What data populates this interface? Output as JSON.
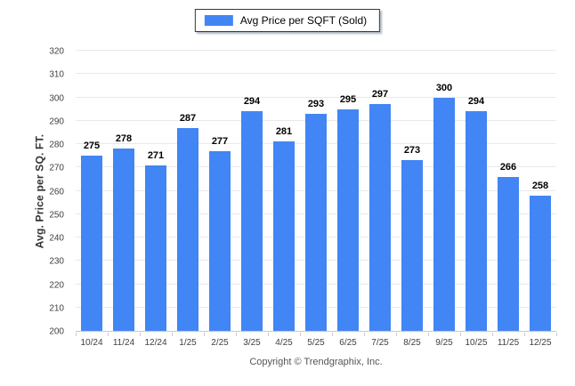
{
  "legend": {
    "label": "Avg Price per SQFT (Sold)",
    "swatch_color": "#4285F4"
  },
  "footer": {
    "copyright": "Copyright © Trendgraphix, Inc."
  },
  "chart_data": {
    "type": "bar",
    "title": "Avg Price per SQFT (Sold)",
    "categories": [
      "10/24",
      "11/24",
      "12/24",
      "1/25",
      "2/25",
      "3/25",
      "4/25",
      "5/25",
      "6/25",
      "7/25",
      "8/25",
      "9/25",
      "10/25",
      "11/25",
      "12/25"
    ],
    "values": [
      275,
      278,
      271,
      287,
      277,
      294,
      281,
      293,
      295,
      297,
      273,
      300,
      294,
      266,
      258
    ],
    "ylabel": "Avg. Price per SQ. FT.",
    "xlabel": "",
    "ylim": [
      200,
      320
    ],
    "yticks": [
      200,
      210,
      220,
      230,
      240,
      250,
      260,
      270,
      280,
      290,
      300,
      310,
      320
    ],
    "bar_color": "#4285F4",
    "grid": true,
    "legend_position": "top",
    "value_labels": true
  }
}
